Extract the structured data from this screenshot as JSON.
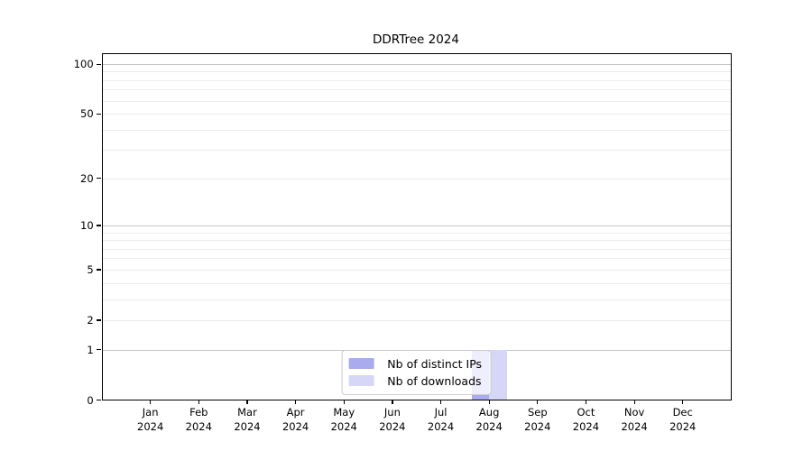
{
  "chart_data": {
    "type": "bar",
    "title": "DDRTree 2024",
    "categories": [
      "Jan",
      "Feb",
      "Mar",
      "Apr",
      "May",
      "Jun",
      "Jul",
      "Aug",
      "Sep",
      "Oct",
      "Nov",
      "Dec"
    ],
    "category_sublabel": "2024",
    "series": [
      {
        "name": "Nb of distinct IPs",
        "color": "#aaaaee",
        "values": [
          0,
          0,
          0,
          0,
          0,
          0,
          0,
          1,
          0,
          0,
          0,
          0
        ]
      },
      {
        "name": "Nb of downloads",
        "color": "#d6d6f7",
        "values": [
          0,
          0,
          0,
          0,
          0,
          0,
          0,
          1,
          0,
          0,
          0,
          0
        ]
      }
    ],
    "xlabel": "",
    "ylabel": "",
    "y_axis": {
      "scale": "log1p",
      "range": [
        0,
        100
      ],
      "tick_labels": [
        0,
        1,
        2,
        5,
        10,
        20,
        50,
        100
      ],
      "major_gridlines": [
        1,
        10,
        100
      ],
      "minor_gridlines": [
        2,
        3,
        4,
        5,
        6,
        7,
        8,
        9,
        20,
        30,
        40,
        50,
        60,
        70,
        80,
        90
      ]
    },
    "grid": "horizontal",
    "legend": {
      "position": "bottom-center",
      "entries": [
        "Nb of distinct IPs",
        "Nb of downloads"
      ]
    },
    "colors": {
      "major_grid": "#c6c6c6",
      "minor_grid": "#ececec",
      "axis": "#000000",
      "legend_border": "#cccccc",
      "background": "#ffffff"
    }
  }
}
